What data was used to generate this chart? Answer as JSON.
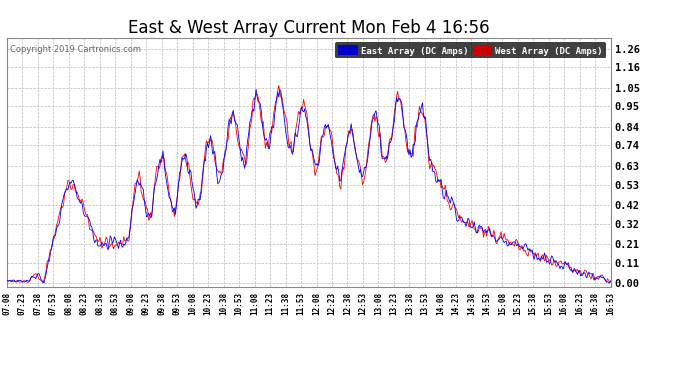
{
  "title": "East & West Array Current Mon Feb 4 16:56",
  "copyright": "Copyright 2019 Cartronics.com",
  "legend_east": "East Array (DC Amps)",
  "legend_west": "West Array (DC Amps)",
  "east_color": "#0000ff",
  "west_color": "#ff0000",
  "east_legend_bg": "#0000cc",
  "west_legend_bg": "#cc0000",
  "background_color": "#ffffff",
  "plot_bg_color": "#ffffff",
  "grid_color": "#bbbbbb",
  "yticks": [
    0.0,
    0.11,
    0.21,
    0.32,
    0.42,
    0.53,
    0.63,
    0.74,
    0.84,
    0.95,
    1.05,
    1.16,
    1.26
  ],
  "ymin": -0.02,
  "ymax": 1.32,
  "title_fontsize": 12,
  "n_points": 585,
  "xtick_labels": [
    "07:08",
    "07:23",
    "07:38",
    "07:53",
    "08:08",
    "08:23",
    "08:38",
    "08:53",
    "09:08",
    "09:23",
    "09:38",
    "09:53",
    "10:08",
    "10:23",
    "10:38",
    "10:53",
    "11:08",
    "11:23",
    "11:38",
    "11:53",
    "12:08",
    "12:23",
    "12:38",
    "12:53",
    "13:08",
    "13:23",
    "13:38",
    "13:53",
    "14:08",
    "14:23",
    "14:38",
    "14:53",
    "15:08",
    "15:23",
    "15:38",
    "15:53",
    "16:08",
    "16:23",
    "16:38",
    "16:53"
  ]
}
